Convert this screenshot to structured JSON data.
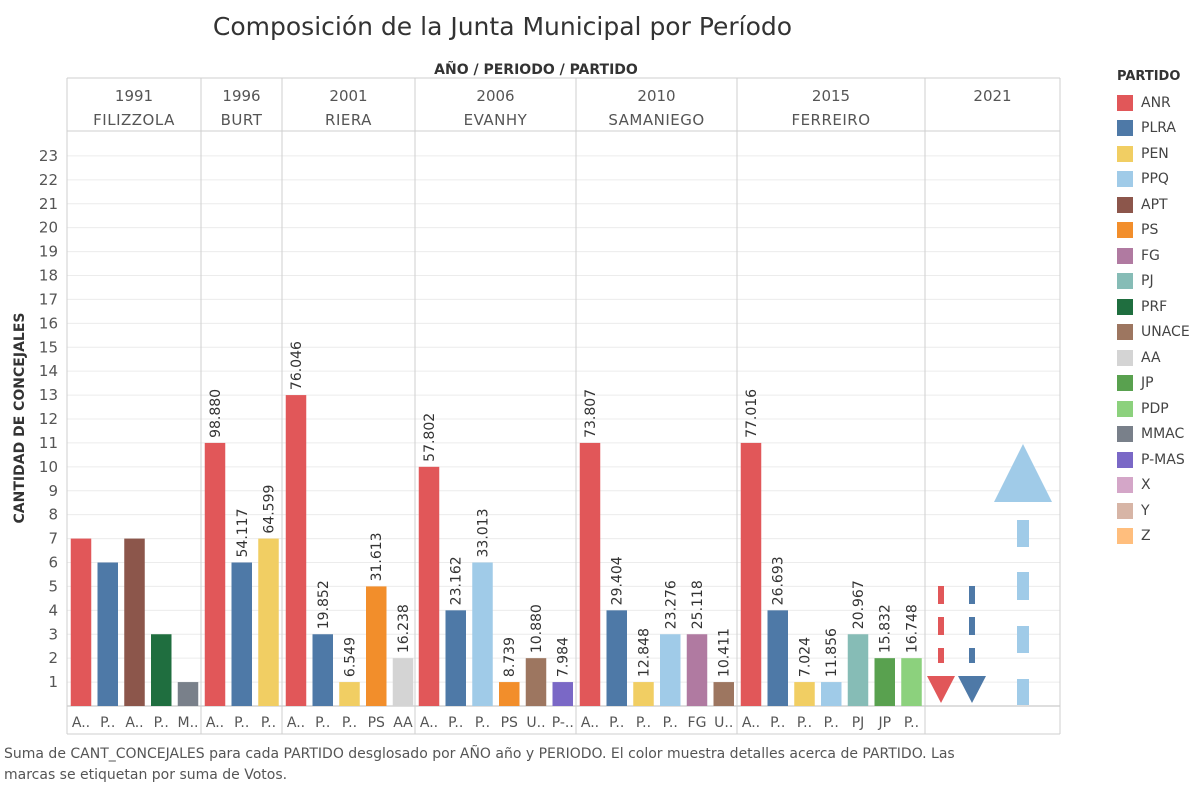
{
  "chart_data": {
    "type": "bar",
    "title": "Composición de la Junta Municipal por Período",
    "column_header": "AÑO / PERIODO / PARTIDO",
    "ylabel": "CANTIDAD DE CONCEJALES",
    "ylim": [
      0,
      24
    ],
    "yticks": [
      1,
      2,
      3,
      4,
      5,
      6,
      7,
      8,
      9,
      10,
      11,
      12,
      13,
      14,
      15,
      16,
      17,
      18,
      19,
      20,
      21,
      22,
      23
    ],
    "grid": true,
    "legend_position": "right",
    "panels": [
      {
        "year": "1991",
        "period": "FILIZZOLA",
        "bars": [
          {
            "party": "ANR",
            "tick": "A..",
            "value": 7,
            "label": ""
          },
          {
            "party": "PLRA",
            "tick": "P..",
            "value": 6,
            "label": ""
          },
          {
            "party": "APT",
            "tick": "A..",
            "value": 7,
            "label": ""
          },
          {
            "party": "PRF",
            "tick": "P..",
            "value": 3,
            "label": ""
          },
          {
            "party": "MMAC",
            "tick": "M..",
            "value": 1,
            "label": ""
          }
        ]
      },
      {
        "year": "1996",
        "period": "BURT",
        "bars": [
          {
            "party": "ANR",
            "tick": "A..",
            "value": 11,
            "label": "98.880"
          },
          {
            "party": "PLRA",
            "tick": "P..",
            "value": 6,
            "label": "54.117"
          },
          {
            "party": "PEN",
            "tick": "P..",
            "value": 7,
            "label": "64.599"
          }
        ]
      },
      {
        "year": "2001",
        "period": "RIERA",
        "bars": [
          {
            "party": "ANR",
            "tick": "A..",
            "value": 13,
            "label": "76.046"
          },
          {
            "party": "PLRA",
            "tick": "P..",
            "value": 3,
            "label": "19.852"
          },
          {
            "party": "PEN",
            "tick": "P..",
            "value": 1,
            "label": "6.549"
          },
          {
            "party": "PS",
            "tick": "PS",
            "value": 5,
            "label": "31.613"
          },
          {
            "party": "AA",
            "tick": "AA",
            "value": 2,
            "label": "16.238"
          }
        ]
      },
      {
        "year": "2006",
        "period": "EVANHY",
        "bars": [
          {
            "party": "ANR",
            "tick": "A..",
            "value": 10,
            "label": "57.802"
          },
          {
            "party": "PLRA",
            "tick": "P..",
            "value": 4,
            "label": "23.162"
          },
          {
            "party": "PPQ",
            "tick": "P..",
            "value": 6,
            "label": "33.013"
          },
          {
            "party": "PS",
            "tick": "PS",
            "value": 1,
            "label": "8.739"
          },
          {
            "party": "UNACE",
            "tick": "U..",
            "value": 2,
            "label": "10.880"
          },
          {
            "party": "P-MAS",
            "tick": "P-..",
            "value": 1,
            "label": "7.984"
          }
        ]
      },
      {
        "year": "2010",
        "period": "SAMANIEGO",
        "bars": [
          {
            "party": "ANR",
            "tick": "A..",
            "value": 11,
            "label": "73.807"
          },
          {
            "party": "PLRA",
            "tick": "P..",
            "value": 4,
            "label": "29.404"
          },
          {
            "party": "PEN",
            "tick": "P..",
            "value": 1,
            "label": "12.848"
          },
          {
            "party": "PPQ",
            "tick": "P..",
            "value": 3,
            "label": "23.276"
          },
          {
            "party": "FG",
            "tick": "FG",
            "value": 3,
            "label": "25.118"
          },
          {
            "party": "UNACE",
            "tick": "U..",
            "value": 1,
            "label": "10.411"
          }
        ]
      },
      {
        "year": "2015",
        "period": "FERREIRO",
        "bars": [
          {
            "party": "ANR",
            "tick": "A..",
            "value": 11,
            "label": "77.016"
          },
          {
            "party": "PLRA",
            "tick": "P..",
            "value": 4,
            "label": "26.693"
          },
          {
            "party": "PEN",
            "tick": "P..",
            "value": 1,
            "label": "7.024"
          },
          {
            "party": "PPQ",
            "tick": "P..",
            "value": 1,
            "label": "11.856"
          },
          {
            "party": "PJ",
            "tick": "PJ",
            "value": 3,
            "label": "20.967"
          },
          {
            "party": "JP",
            "tick": "JP",
            "value": 2,
            "label": "15.832"
          },
          {
            "party": "PDP",
            "tick": "P..",
            "value": 2,
            "label": "16.748"
          }
        ]
      },
      {
        "year": "2021",
        "period": "",
        "bars": [],
        "decorations": [
          {
            "shape": "arrow-down",
            "color_party": "ANR"
          },
          {
            "shape": "arrow-down",
            "color_party": "PLRA"
          },
          {
            "shape": "arrow-up",
            "color_party": "PPQ"
          }
        ]
      }
    ],
    "legend": {
      "title": "PARTIDO",
      "items": [
        {
          "name": "ANR",
          "color": "#E15759"
        },
        {
          "name": "PLRA",
          "color": "#4E79A7"
        },
        {
          "name": "PEN",
          "color": "#F1CE63"
        },
        {
          "name": "PPQ",
          "color": "#A0CBE8"
        },
        {
          "name": "APT",
          "color": "#8C564B"
        },
        {
          "name": "PS",
          "color": "#F28E2B"
        },
        {
          "name": "FG",
          "color": "#B07AA1"
        },
        {
          "name": "PJ",
          "color": "#86BCB6"
        },
        {
          "name": "PRF",
          "color": "#1F6E3F"
        },
        {
          "name": "UNACE",
          "color": "#9D7660"
        },
        {
          "name": "AA",
          "color": "#D4D4D4"
        },
        {
          "name": "JP",
          "color": "#59A14F"
        },
        {
          "name": "PDP",
          "color": "#8CD17D"
        },
        {
          "name": "MMAC",
          "color": "#79808A"
        },
        {
          "name": "P-MAS",
          "color": "#7A68C6"
        },
        {
          "name": "X",
          "color": "#D4A6C8"
        },
        {
          "name": "Y",
          "color": "#D7B5A6"
        },
        {
          "name": "Z",
          "color": "#FFBE7D"
        }
      ]
    },
    "caption": "Suma de CANT_CONCEJALES para cada PARTIDO desglosado por AÑO año y PERIODO.  El color muestra detalles acerca de PARTIDO.  Las marcas se etiquetan por suma de Votos."
  }
}
